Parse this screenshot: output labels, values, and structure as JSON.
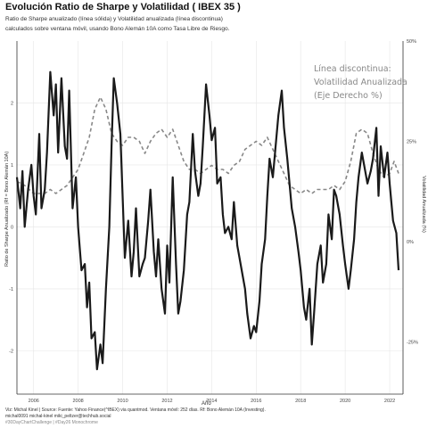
{
  "title": "Evolución Ratio de Sharpe y Volatilidad ( IBEX 35 )",
  "subtitle_line1": "Ratio de Sharpe anualizado (línea sólida) y Volatilidad anualizada (línea discontinua)",
  "subtitle_line2": "calculados sobre ventana móvil, usando Bono Alemán 10A como Tasa Libre de Riesgo.",
  "annotation": [
    "Línea discontinua:",
    "Volatilidad Anualizada",
    "(Eje Derecho %)"
  ],
  "caption_line1": "Viz:  Michal Kinel |  Source:  Fuente: Yahoo Finance(^IBEX) via quantmod. Ventana móvil: 252 días. Rf: Bono Alemán 10A (Investing).",
  "caption_line2": "michal0091  michal-kinel  miki_peltzer@techhub.social",
  "caption_line3": "#30DayChartChallenge | #Day26 Monochrome",
  "colors": {
    "sharpe": "#1a1a1a",
    "volatility": "#888888",
    "grid": "#e6e6e6"
  },
  "chart_data": {
    "type": "line",
    "title": "Evolución Ratio de Sharpe y Volatilidad ( IBEX 35 )",
    "xlabel": "Año",
    "ylabel": "Ratio de Sharpe Anualizado (Rf = Bono Alemán 10A)",
    "y2label": "Volatilidad Anualizada (%)",
    "xlim": [
      2005.25,
      2022.6
    ],
    "ylim": [
      -2.7,
      3.0
    ],
    "y2lim": [
      -0.38,
      0.5
    ],
    "x_ticks": [
      2006,
      2008,
      2010,
      2012,
      2014,
      2016,
      2018,
      2020,
      2022
    ],
    "y_ticks": [
      -2,
      -1,
      0,
      1,
      2
    ],
    "y2_ticks": [
      -0.25,
      0,
      0.25,
      0.5
    ],
    "y2_tick_labels": [
      "-25%",
      "0%",
      "25%",
      "50%"
    ],
    "grid": true,
    "series": [
      {
        "style": "solid",
        "axis": "left",
        "x": [
          2005.25,
          2005.4,
          2005.5,
          2005.6,
          2005.75,
          2005.9,
          2006.0,
          2006.1,
          2006.25,
          2006.35,
          2006.5,
          2006.6,
          2006.75,
          2006.9,
          2007.0,
          2007.1,
          2007.25,
          2007.4,
          2007.5,
          2007.6,
          2007.75,
          2007.9,
          2008.0,
          2008.15,
          2008.3,
          2008.4,
          2008.5,
          2008.6,
          2008.75,
          2008.85,
          2009.0,
          2009.1,
          2009.25,
          2009.4,
          2009.5,
          2009.6,
          2009.75,
          2009.9,
          2010.0,
          2010.1,
          2010.25,
          2010.4,
          2010.5,
          2010.6,
          2010.75,
          2010.9,
          2011.0,
          2011.15,
          2011.25,
          2011.4,
          2011.5,
          2011.6,
          2011.75,
          2011.9,
          2012.0,
          2012.1,
          2012.25,
          2012.4,
          2012.5,
          2012.6,
          2012.75,
          2012.9,
          2013.0,
          2013.15,
          2013.25,
          2013.4,
          2013.5,
          2013.6,
          2013.75,
          2013.9,
          2014.0,
          2014.15,
          2014.25,
          2014.4,
          2014.5,
          2014.6,
          2014.75,
          2014.9,
          2015.0,
          2015.15,
          2015.25,
          2015.4,
          2015.5,
          2015.6,
          2015.75,
          2015.9,
          2016.0,
          2016.15,
          2016.25,
          2016.4,
          2016.5,
          2016.6,
          2016.75,
          2016.9,
          2017.0,
          2017.15,
          2017.25,
          2017.4,
          2017.5,
          2017.6,
          2017.75,
          2017.9,
          2018.0,
          2018.15,
          2018.25,
          2018.4,
          2018.5,
          2018.6,
          2018.75,
          2018.9,
          2019.0,
          2019.15,
          2019.25,
          2019.4,
          2019.5,
          2019.6,
          2019.75,
          2019.9,
          2020.0,
          2020.15,
          2020.25,
          2020.4,
          2020.5,
          2020.6,
          2020.75,
          2020.9,
          2021.0,
          2021.15,
          2021.25,
          2021.4,
          2021.5,
          2021.6,
          2021.75,
          2021.9,
          2022.0,
          2022.15,
          2022.3,
          2022.4
        ],
        "values": [
          0.8,
          0.3,
          0.9,
          0.0,
          0.6,
          1.0,
          0.5,
          0.2,
          1.5,
          0.3,
          0.6,
          1.2,
          2.5,
          1.8,
          2.3,
          1.2,
          2.4,
          1.3,
          1.1,
          2.2,
          0.3,
          0.8,
          0.0,
          -0.7,
          -0.6,
          -1.3,
          -0.9,
          -1.8,
          -1.7,
          -2.3,
          -1.9,
          -2.2,
          -1.0,
          0.0,
          1.3,
          2.4,
          2.0,
          1.5,
          0.5,
          -0.5,
          0.1,
          -0.8,
          -0.4,
          0.3,
          -0.8,
          -0.6,
          -0.5,
          0.1,
          0.6,
          -0.4,
          -0.8,
          -0.2,
          -1.0,
          -1.4,
          -0.3,
          -0.9,
          0.8,
          -0.6,
          -1.4,
          -1.2,
          -0.7,
          0.2,
          0.4,
          1.5,
          0.9,
          0.5,
          0.7,
          1.3,
          2.3,
          1.8,
          1.4,
          1.6,
          0.7,
          0.8,
          0.2,
          -0.1,
          0.0,
          -0.2,
          0.4,
          -0.3,
          -0.5,
          -0.8,
          -1.0,
          -1.4,
          -1.8,
          -1.6,
          -1.7,
          -1.2,
          -0.6,
          -0.2,
          0.5,
          1.1,
          0.8,
          1.4,
          1.8,
          2.2,
          1.6,
          1.1,
          0.7,
          0.3,
          0.0,
          -0.4,
          -0.7,
          -1.3,
          -1.5,
          -1.0,
          -1.9,
          -1.4,
          -0.6,
          -0.3,
          -0.9,
          -0.6,
          0.2,
          -0.2,
          0.6,
          0.5,
          0.2,
          -0.3,
          -0.6,
          -1.0,
          -0.7,
          -0.2,
          0.4,
          0.8,
          1.2,
          0.9,
          0.7,
          0.9,
          1.1,
          1.6,
          0.5,
          1.3,
          0.8,
          1.2,
          0.7,
          0.1,
          -0.1,
          -0.7
        ]
      },
      {
        "style": "dashed",
        "axis": "right",
        "x": [
          2005.25,
          2005.6,
          2006.0,
          2006.25,
          2006.5,
          2006.75,
          2007.0,
          2007.25,
          2007.5,
          2007.75,
          2008.0,
          2008.25,
          2008.5,
          2008.75,
          2009.0,
          2009.25,
          2009.5,
          2009.75,
          2010.0,
          2010.25,
          2010.5,
          2010.75,
          2011.0,
          2011.25,
          2011.5,
          2011.75,
          2012.0,
          2012.25,
          2012.5,
          2012.75,
          2013.0,
          2013.25,
          2013.5,
          2013.75,
          2014.0,
          2014.25,
          2014.5,
          2014.75,
          2015.0,
          2015.25,
          2015.5,
          2015.75,
          2016.0,
          2016.25,
          2016.5,
          2016.75,
          2017.0,
          2017.25,
          2017.5,
          2017.75,
          2018.0,
          2018.25,
          2018.5,
          2018.75,
          2019.0,
          2019.25,
          2019.5,
          2019.75,
          2020.0,
          2020.25,
          2020.5,
          2020.75,
          2021.0,
          2021.25,
          2021.5,
          2021.75,
          2022.0,
          2022.2,
          2022.4
        ],
        "values": [
          0.15,
          0.14,
          0.12,
          0.12,
          0.12,
          0.13,
          0.12,
          0.13,
          0.14,
          0.16,
          0.18,
          0.22,
          0.26,
          0.33,
          0.36,
          0.33,
          0.27,
          0.25,
          0.24,
          0.26,
          0.26,
          0.25,
          0.22,
          0.25,
          0.27,
          0.28,
          0.26,
          0.28,
          0.24,
          0.2,
          0.18,
          0.18,
          0.17,
          0.18,
          0.19,
          0.18,
          0.18,
          0.17,
          0.19,
          0.2,
          0.23,
          0.24,
          0.25,
          0.24,
          0.26,
          0.23,
          0.2,
          0.17,
          0.14,
          0.13,
          0.12,
          0.13,
          0.12,
          0.13,
          0.13,
          0.13,
          0.14,
          0.13,
          0.15,
          0.2,
          0.27,
          0.28,
          0.27,
          0.22,
          0.18,
          0.16,
          0.17,
          0.2,
          0.17
        ]
      }
    ]
  }
}
